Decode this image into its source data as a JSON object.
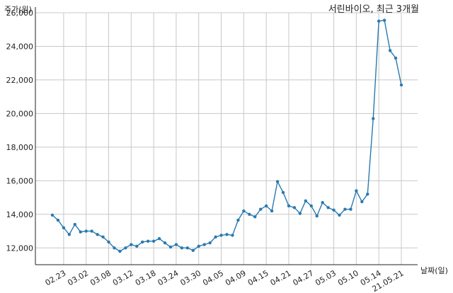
{
  "chart_data": {
    "type": "line",
    "title": "서린바이오, 최근 3개월",
    "ylabel": "주가(원)",
    "xlabel": "날짜(일)",
    "ylim": [
      11000,
      26000
    ],
    "yticks": [
      12000,
      14000,
      16000,
      18000,
      20000,
      22000,
      24000,
      26000
    ],
    "ytick_labels": [
      "12,000",
      "14,000",
      "16,000",
      "18,000",
      "20,000",
      "22,000",
      "24,000",
      "26,000"
    ],
    "xtick_labels": [
      "02.23",
      "03.02",
      "03.08",
      "03.12",
      "03.18",
      "03.24",
      "03.30",
      "04.05",
      "04.09",
      "04.15",
      "04.21",
      "04.27",
      "05.03",
      "05.10",
      "05.14",
      "21.05.21"
    ],
    "xtick_indices": [
      2,
      6,
      10,
      14,
      18,
      22,
      26,
      30,
      34,
      38,
      42,
      46,
      50,
      54,
      58,
      62
    ],
    "grid": true,
    "line_color": "#2a7ab0",
    "series": [
      {
        "values": [
          13950,
          13650,
          13200,
          12800,
          13400,
          12950,
          13000,
          13000,
          12800,
          12650,
          12350,
          12000,
          11800,
          12000,
          12200,
          12100,
          12350,
          12400,
          12400,
          12550,
          12300,
          12050,
          12200,
          12000,
          12000,
          11850,
          12100,
          12200,
          12300,
          12650,
          12750,
          12800,
          12750,
          13650,
          14200,
          14000,
          13850,
          14300,
          14500,
          14200,
          15950,
          15300,
          14500,
          14400,
          14050,
          14800,
          14500,
          13900,
          14700,
          14400,
          14250,
          13950,
          14300,
          14300,
          15400,
          14750,
          15200,
          19700,
          25500,
          25550,
          23750,
          23300,
          21700
        ]
      }
    ]
  }
}
